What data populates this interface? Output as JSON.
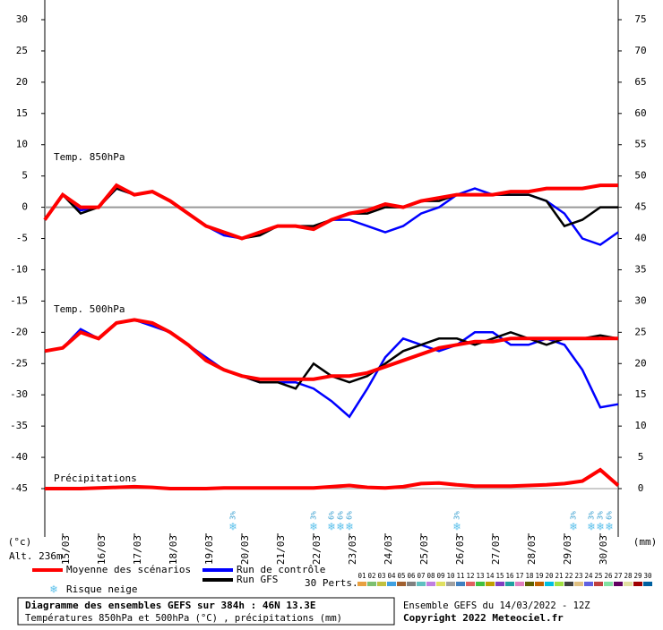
{
  "chart_data": {
    "type": "line",
    "ylim": [
      -45,
      30
    ],
    "yticks": [
      30,
      25,
      20,
      15,
      10,
      5,
      0,
      -5,
      -10,
      -15,
      -20,
      -25,
      -30,
      -35,
      -40,
      -45
    ],
    "y2lim": [
      0,
      75
    ],
    "y2ticks": [
      75,
      70,
      65,
      60,
      55,
      50,
      45,
      40,
      35,
      30,
      25,
      20,
      15,
      10,
      5,
      0
    ],
    "xlim": [
      0,
      384
    ],
    "xticks": [
      {
        "value": 12,
        "label": "15/03"
      },
      {
        "value": 36,
        "label": "16/03"
      },
      {
        "value": 60,
        "label": "17/03"
      },
      {
        "value": 84,
        "label": "18/03"
      },
      {
        "value": 108,
        "label": "19/03"
      },
      {
        "value": 132,
        "label": "20/03"
      },
      {
        "value": 156,
        "label": "21/03"
      },
      {
        "value": 180,
        "label": "22/03"
      },
      {
        "value": 204,
        "label": "23/03"
      },
      {
        "value": 228,
        "label": "24/03"
      },
      {
        "value": 252,
        "label": "25/03"
      },
      {
        "value": 276,
        "label": "26/03"
      },
      {
        "value": 300,
        "label": "27/03"
      },
      {
        "value": 324,
        "label": "28/03"
      },
      {
        "value": 348,
        "label": "29/03"
      },
      {
        "value": 372,
        "label": "30/03"
      }
    ],
    "y_unit": "(°c)",
    "y2_unit": "(mm)",
    "annotations": [
      "Temp. 850hPa",
      "Temp. 500hPa",
      "Précipitations",
      "Alt. 236m"
    ],
    "x": [
      0,
      12,
      24,
      36,
      48,
      60,
      72,
      84,
      96,
      108,
      120,
      132,
      144,
      156,
      168,
      180,
      192,
      204,
      216,
      228,
      240,
      252,
      264,
      276,
      288,
      300,
      312,
      324,
      336,
      348,
      360,
      372,
      384
    ],
    "series": [
      {
        "name": "Moyenne des scénarios",
        "color": "#ff0000",
        "values": [
          -2,
          2,
          0,
          0,
          3.5,
          2,
          2.5,
          1,
          -1,
          -3,
          -4,
          -5,
          -4,
          -3,
          -3,
          -3.5,
          -2,
          -1,
          -0.5,
          0.5,
          0,
          1,
          1.5,
          2,
          2,
          2,
          2.5,
          2.5,
          3,
          3,
          3,
          3.5,
          3.5
        ]
      },
      {
        "name": "Run de contrôle",
        "color": "#0000ff",
        "values": [
          -2,
          2,
          -0.5,
          0,
          3,
          2,
          2.5,
          1,
          -1,
          -3,
          -4.5,
          -5,
          -4,
          -3,
          -3,
          -3.5,
          -2,
          -2,
          -3,
          -4,
          -3,
          -1,
          0,
          2,
          3,
          2,
          2,
          2,
          1,
          -1,
          -5,
          -6,
          -4
        ]
      },
      {
        "name": "Run GFS",
        "color": "#000000",
        "values": [
          -2,
          2,
          -1,
          0,
          3,
          2,
          2.5,
          1,
          -1,
          -3,
          -4,
          -5,
          -4.5,
          -3,
          -3,
          -3,
          -2,
          -1,
          -1,
          0,
          0,
          1,
          1,
          2,
          2,
          2,
          2,
          2,
          1,
          -3,
          -2,
          0,
          0
        ]
      },
      {
        "name": "Moyenne des scénarios",
        "color": "#ff0000",
        "values": [
          -23,
          -22.5,
          -20,
          -21,
          -18.5,
          -18,
          -18.5,
          -20,
          -22,
          -24.5,
          -26,
          -27,
          -27.5,
          -27.5,
          -27.5,
          -27.5,
          -27,
          -27,
          -26.5,
          -25.5,
          -24.5,
          -23.5,
          -22.5,
          -22,
          -21.5,
          -21.5,
          -21,
          -21,
          -21,
          -21,
          -21,
          -21,
          -21
        ]
      },
      {
        "name": "Run de contrôle",
        "color": "#0000ff",
        "values": [
          -23,
          -22.5,
          -19.5,
          -21,
          -18.5,
          -18,
          -19,
          -20,
          -22,
          -24,
          -26,
          -27,
          -28,
          -28,
          -28,
          -29,
          -31,
          -33.5,
          -29,
          -24,
          -21,
          -22,
          -23,
          -22,
          -20,
          -20,
          -22,
          -22,
          -21,
          -22,
          -26,
          -32,
          -31.5
        ]
      },
      {
        "name": "Run GFS",
        "color": "#000000",
        "values": [
          -23,
          -22.5,
          -20,
          -21,
          -18.5,
          -18,
          -18.5,
          -20,
          -22,
          -24.5,
          -26,
          -27,
          -28,
          -28,
          -29,
          -25,
          -27,
          -28,
          -27,
          -25,
          -23,
          -22,
          -21,
          -21,
          -22,
          -21,
          -20,
          -21,
          -22,
          -21,
          -21,
          -20.5,
          -21
        ]
      },
      {
        "name": "Moyenne des scénarios",
        "color": "#ff0000",
        "axis": "y2",
        "values": [
          0,
          0,
          0,
          0.1,
          0.2,
          0.3,
          0.2,
          0,
          0,
          0,
          0.1,
          0.1,
          0.1,
          0.1,
          0.1,
          0.1,
          0.3,
          0.5,
          0.2,
          0.1,
          0.3,
          0.8,
          0.9,
          0.6,
          0.4,
          0.4,
          0.4,
          0.5,
          0.6,
          0.8,
          1.2,
          3,
          0.5
        ]
      }
    ],
    "snow_risk": {
      "name": "Risque neige",
      "x": [
        126,
        180,
        192,
        198,
        204,
        276,
        354,
        366,
        372,
        378
      ],
      "labels": [
        "3%",
        "3%",
        "6%",
        "6%",
        "6%",
        "3%",
        "3%",
        "3%",
        "3%",
        "6%"
      ]
    },
    "perturbations": {
      "name": "30 Perts.",
      "labels": [
        "01",
        "02",
        "03",
        "04",
        "05",
        "06",
        "07",
        "08",
        "09",
        "10",
        "11",
        "12",
        "13",
        "14",
        "15",
        "16",
        "17",
        "18",
        "19",
        "20",
        "21",
        "22",
        "23",
        "24",
        "25",
        "26",
        "27",
        "28",
        "29",
        "30"
      ],
      "colors": [
        "#e8a040",
        "#7cc070",
        "#c0c040",
        "#40a0e0",
        "#a06030",
        "#808080",
        "#60c0c0",
        "#c080e0",
        "#e0e060",
        "#a0a0a0",
        "#4080c0",
        "#e06060",
        "#40c040",
        "#c0a000",
        "#8040c0",
        "#20a0a0",
        "#e080c0",
        "#606000",
        "#c06000",
        "#00c0e0",
        "#a0e040",
        "#404040",
        "#e0c080",
        "#6060e0",
        "#c04040",
        "#80e0a0",
        "#600060",
        "#e0e0a0",
        "#a00000",
        "#0060a0"
      ]
    },
    "footer": {
      "title": "Diagramme des ensembles GEFS sur 384h : 46N 13.3E",
      "subtitle": "Températures 850hPa et 500hPa (°C) , précipitations (mm)",
      "run": "Ensemble GEFS du 14/03/2022 - 12Z",
      "copyright": "Copyright 2022 Meteociel.fr"
    }
  }
}
